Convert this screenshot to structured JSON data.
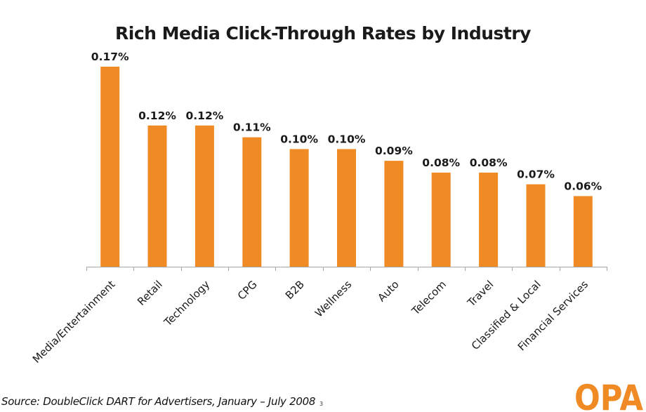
{
  "chart_data": {
    "type": "bar",
    "title": "Rich Media Click-Through Rates by Industry",
    "xlabel": "",
    "ylabel": "",
    "ylim": [
      0,
      0.17
    ],
    "grid": false,
    "legend": "none",
    "bar_color": "#F08A24",
    "categories": [
      "Media/Entertainment",
      "Retail",
      "Technology",
      "CPG",
      "B2B",
      "Wellness",
      "Auto",
      "Telecom",
      "Travel",
      "Classified & Local",
      "Financial Services"
    ],
    "values": [
      0.17,
      0.12,
      0.12,
      0.11,
      0.1,
      0.1,
      0.09,
      0.08,
      0.08,
      0.07,
      0.06
    ],
    "value_labels": [
      "0.17%",
      "0.12%",
      "0.12%",
      "0.11%",
      "0.10%",
      "0.10%",
      "0.09%",
      "0.08%",
      "0.08%",
      "0.07%",
      "0.06%"
    ]
  },
  "footer": {
    "source": "Source:  DoubleClick DART for Advertisers,  January – July 2008",
    "page_number": "3"
  },
  "logo": {
    "text": "OPA",
    "color": "#F08A24"
  }
}
